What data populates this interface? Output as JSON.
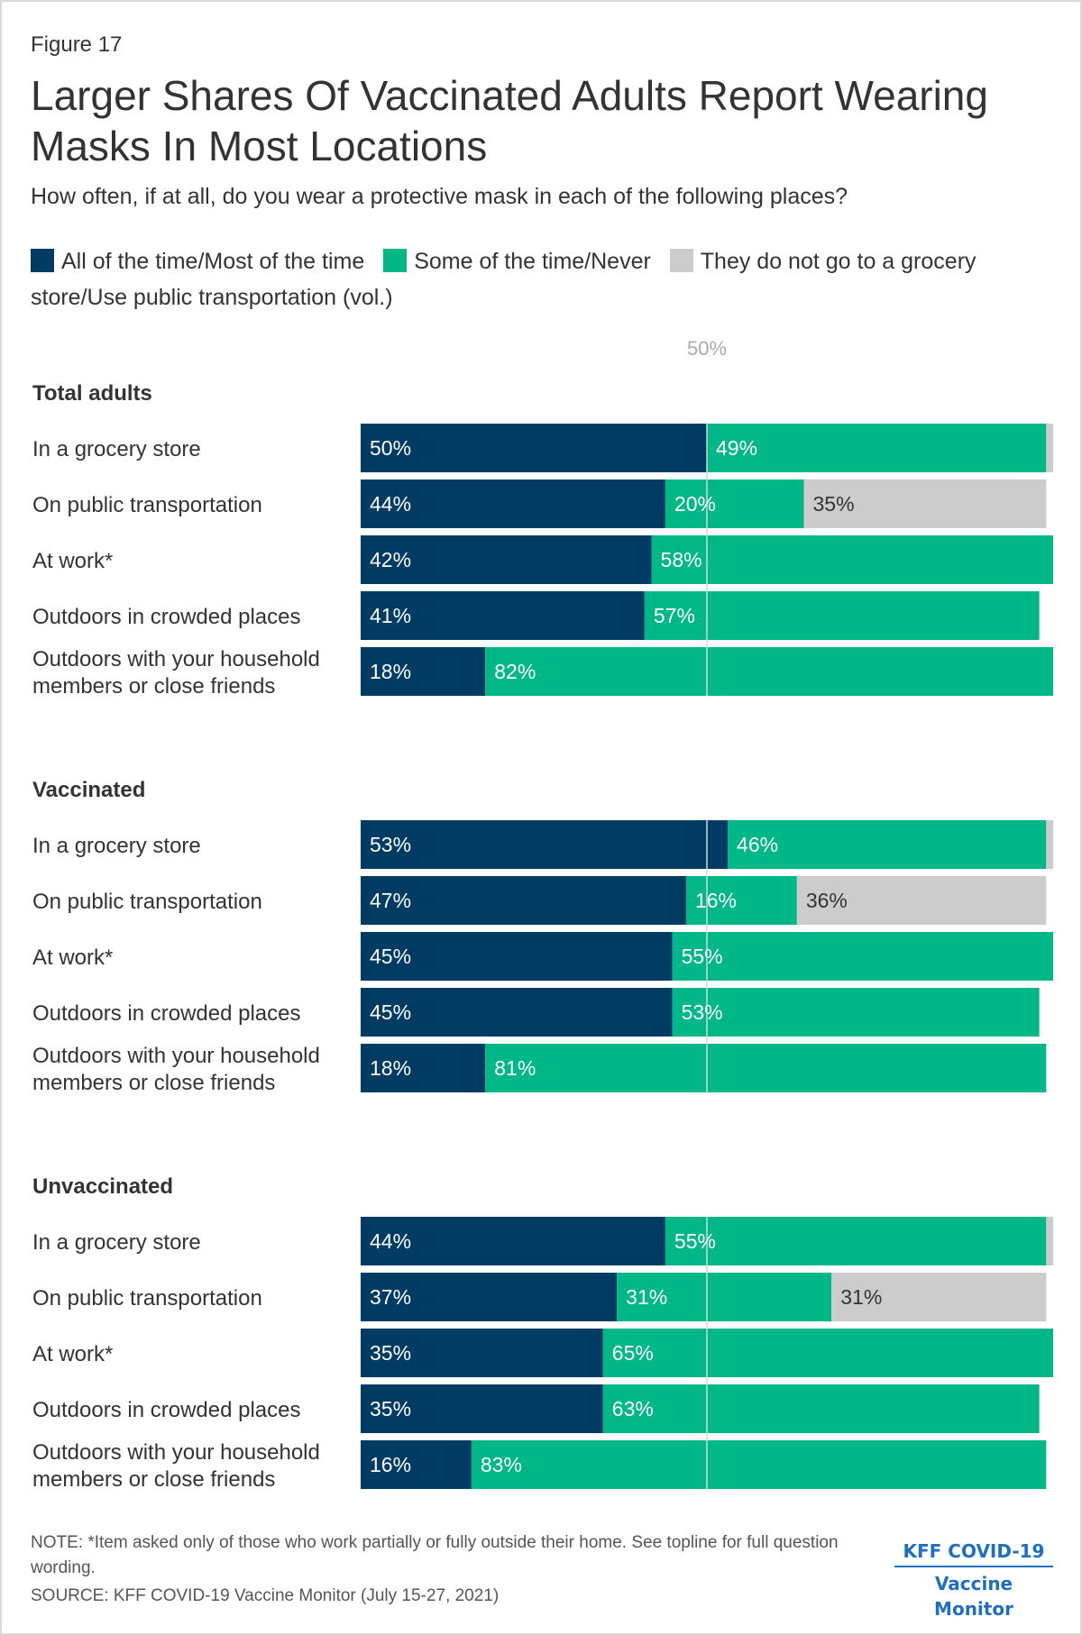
{
  "figure_label": "Figure 17",
  "colors": {
    "navy": "#003b64",
    "green": "#00b887",
    "gray": "#cccccc",
    "reference": "#d6d6d6"
  },
  "chart_data": {
    "type": "bar",
    "orientation": "horizontal",
    "stacked": true,
    "title": "Larger Shares Of Vaccinated Adults Report Wearing Masks In Most Locations",
    "subtitle": "How often, if at all, do you wear a protective mask in each of the following places?",
    "legend": [
      {
        "key": "most",
        "label": "All of the time/Most of the time",
        "color": "#003b64"
      },
      {
        "key": "some",
        "label": "Some of the time/Never",
        "color": "#00b887"
      },
      {
        "key": "dont_go",
        "label": "They do not go to a grocery store/Use public transportation (vol.)",
        "color": "#cccccc"
      }
    ],
    "reference_line": {
      "value": 50,
      "label": "50%"
    },
    "xlim": [
      0,
      100
    ],
    "groups": [
      {
        "name": "Total adults",
        "rows": [
          {
            "label": "In a grocery store",
            "values": [
              50,
              49,
              1
            ],
            "labels": [
              "50%",
              "49%",
              ""
            ]
          },
          {
            "label": "On public transportation",
            "values": [
              44,
              20,
              35
            ],
            "labels": [
              "44%",
              "20%",
              "35%"
            ]
          },
          {
            "label": "At work*",
            "values": [
              42,
              58,
              0
            ],
            "labels": [
              "42%",
              "58%",
              ""
            ]
          },
          {
            "label": "Outdoors in crowded places",
            "values": [
              41,
              57,
              0
            ],
            "labels": [
              "41%",
              "57%",
              ""
            ]
          },
          {
            "label": "Outdoors with your household members or close friends",
            "lines": [
              "Outdoors with your household",
              "members or close friends"
            ],
            "values": [
              18,
              82,
              0
            ],
            "labels": [
              "18%",
              "82%",
              ""
            ]
          }
        ]
      },
      {
        "name": "Vaccinated",
        "rows": [
          {
            "label": "In a grocery store",
            "values": [
              53,
              46,
              1
            ],
            "labels": [
              "53%",
              "46%",
              ""
            ]
          },
          {
            "label": "On public transportation",
            "values": [
              47,
              16,
              36
            ],
            "labels": [
              "47%",
              "16%",
              "36%"
            ]
          },
          {
            "label": "At work*",
            "values": [
              45,
              55,
              0
            ],
            "labels": [
              "45%",
              "55%",
              ""
            ]
          },
          {
            "label": "Outdoors in crowded places",
            "values": [
              45,
              53,
              0
            ],
            "labels": [
              "45%",
              "53%",
              ""
            ]
          },
          {
            "label": "Outdoors with your household members or close friends",
            "lines": [
              "Outdoors with your household",
              "members or close friends"
            ],
            "values": [
              18,
              81,
              0
            ],
            "labels": [
              "18%",
              "81%",
              ""
            ]
          }
        ]
      },
      {
        "name": "Unvaccinated",
        "rows": [
          {
            "label": "In a grocery store",
            "values": [
              44,
              55,
              1
            ],
            "labels": [
              "44%",
              "55%",
              ""
            ]
          },
          {
            "label": "On public transportation",
            "values": [
              37,
              31,
              31
            ],
            "labels": [
              "37%",
              "31%",
              "31%"
            ]
          },
          {
            "label": "At work*",
            "values": [
              35,
              65,
              0
            ],
            "labels": [
              "35%",
              "65%",
              ""
            ]
          },
          {
            "label": "Outdoors in crowded places",
            "values": [
              35,
              63,
              0
            ],
            "labels": [
              "35%",
              "63%",
              ""
            ]
          },
          {
            "label": "Outdoors with your household members or close friends",
            "lines": [
              "Outdoors with your household",
              "members or close friends"
            ],
            "values": [
              16,
              83,
              0
            ],
            "labels": [
              "16%",
              "83%",
              ""
            ]
          }
        ]
      }
    ]
  },
  "footer": {
    "note": "NOTE: *Item asked only of those who work partially or fully outside their home. See topline for full question wording.",
    "source": "SOURCE: KFF COVID-19 Vaccine Monitor (July 15-27, 2021)",
    "logo_line1": "KFF COVID-19",
    "logo_line2": "Vaccine Monitor"
  }
}
